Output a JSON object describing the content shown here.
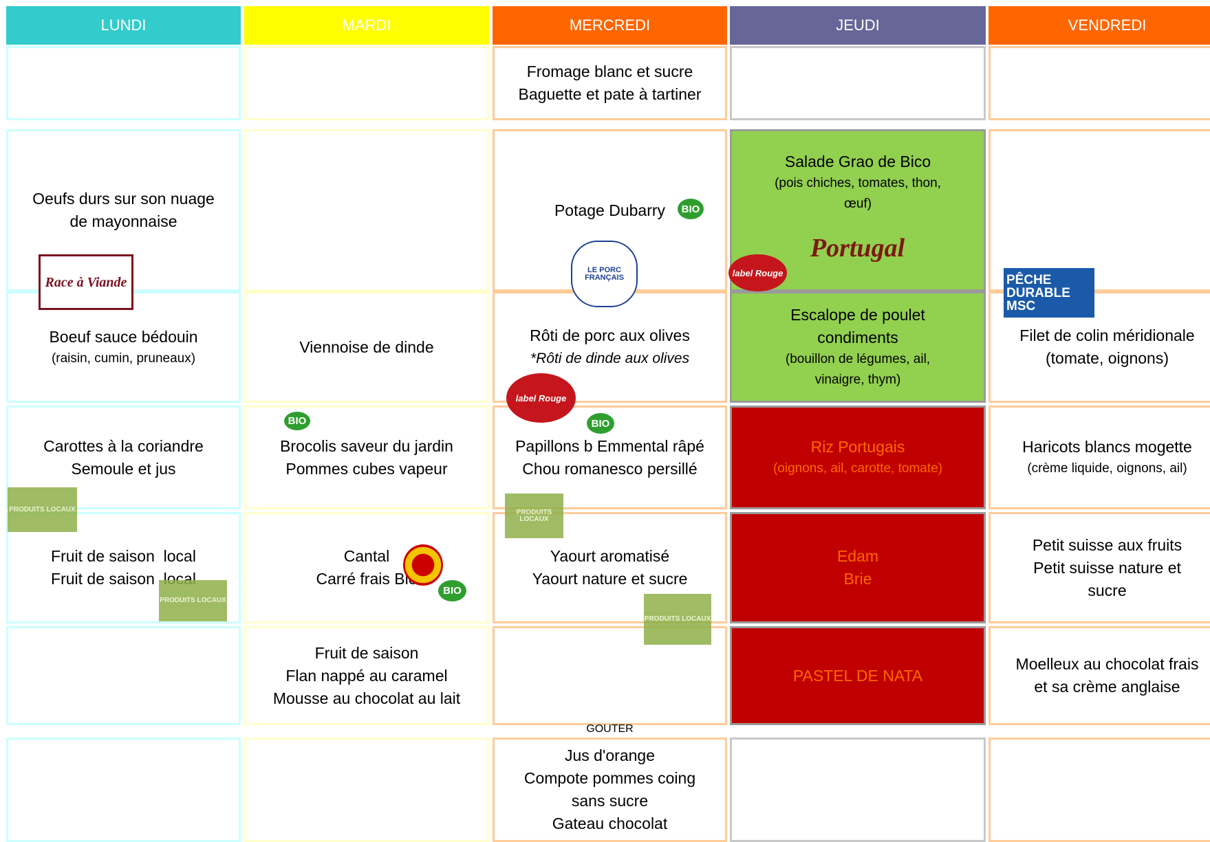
{
  "header": {
    "days": [
      "LUNDI",
      "MARDI",
      "MERCREDI",
      "JEUDI",
      "VENDREDI"
    ]
  },
  "meals": [
    [
      {},
      {},
      {
        "lines": [
          "Fromage blanc et sucre",
          "Baguette et pate à tartiner"
        ]
      },
      {},
      {}
    ],
    [
      {
        "lines": [
          "Oeufs durs sur son nuage",
          "de mayonnaise"
        ]
      },
      {},
      {
        "lines": [
          "Potage Dubarry"
        ]
      },
      {
        "lines": [
          "Salade Grao de Bico"
        ],
        "details": [
          "(pois chiches, tomates, thon,",
          "œuf)"
        ]
      },
      {}
    ],
    [
      {
        "lines": [
          "Boeuf sauce bédouin"
        ],
        "details": [
          "(raisin, cumin, pruneaux)"
        ]
      },
      {
        "lines": [
          "Viennoise de dinde"
        ]
      },
      {
        "lines": [
          "Rôti de porc aux olives"
        ],
        "details": [
          "*Rôti de dinde aux olives"
        ]
      },
      {
        "lines": [
          "Escalope de poulet",
          "condiments"
        ],
        "details": [
          "(bouillon de légumes, ail,",
          "vinaigre, thym)"
        ]
      },
      {
        "lines": [
          "Filet de colin méridionale",
          "(tomate, oignons)"
        ]
      }
    ],
    [
      {
        "lines": [
          "Carottes à la coriandre",
          "Semoule et jus"
        ]
      },
      {
        "lines": [
          "Brocolis saveur du jardin",
          "Pommes cubes vapeur"
        ]
      },
      {
        "lines": [
          "Papillons b Emmental râpé",
          "Chou romanesco persillé"
        ]
      },
      {
        "lines": [
          "Riz Portugais"
        ],
        "details": [
          "(oignons, ail, carotte, tomate)"
        ]
      },
      {
        "lines": [
          "Haricots blancs mogette"
        ],
        "details": [
          "(crème liquide, oignons, ail)"
        ]
      }
    ],
    [
      {
        "lines": [
          "Fruit de saison  local",
          "Fruit de saison  local"
        ]
      },
      {
        "lines": [
          "Cantal",
          "Carré frais Bio"
        ]
      },
      {
        "lines": [
          "Yaourt aromatisé",
          "Yaourt nature et sucre"
        ]
      },
      {
        "lines": [
          "Edam",
          "Brie"
        ]
      },
      {
        "lines": [
          "Petit suisse aux fruits",
          "Petit suisse nature et",
          "sucre"
        ]
      }
    ],
    [
      {},
      {
        "lines": [
          "Fruit de saison",
          "Flan nappé au caramel",
          "Mousse au chocolat au lait"
        ]
      },
      {},
      {
        "lines": [
          "PASTEL DE NATA"
        ]
      },
      {
        "lines": [
          "Moelleux au chocolat frais",
          "et sa crème anglaise"
        ]
      }
    ],
    [
      {},
      {},
      {
        "lines": [
          "Jus d'orange",
          "Compote pommes coing",
          "sans sucre",
          "Gateau chocolat"
        ]
      },
      {},
      {}
    ]
  ],
  "gouter": "GOUTER",
  "logos": [
    "Race à Viande",
    "BIO",
    "LE PORC FRANÇAIS",
    "Portugal",
    "label Rouge",
    "PÊCHE DURABLE MSC",
    "label Rouge",
    "BIO",
    "BIO",
    "PRODUITS LOCAUX",
    "PRODUITS LOCAUX",
    "BIO",
    "PRODUITS LOCAUX",
    "PRODUITS LOCAUX"
  ]
}
